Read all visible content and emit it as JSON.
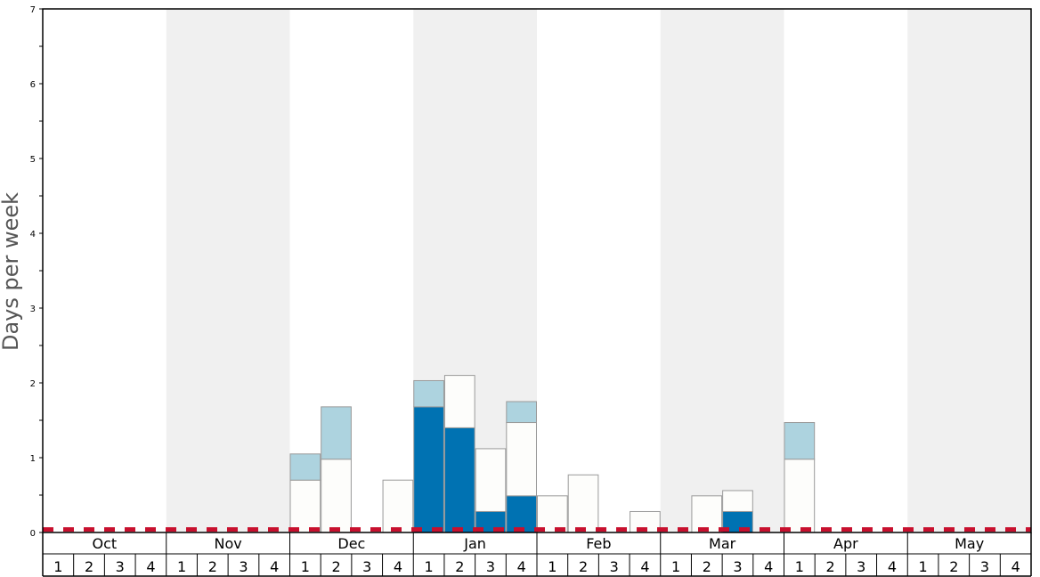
{
  "chart_data": {
    "type": "bar",
    "ylabel": "Days per week",
    "ylim": [
      0,
      7
    ],
    "yticks": [
      "0",
      "1",
      "2",
      "3",
      "4",
      "5",
      "6",
      "7"
    ],
    "months": [
      "Oct",
      "Nov",
      "Dec",
      "Jan",
      "Feb",
      "Mar",
      "Apr",
      "May"
    ],
    "week_labels": [
      "1",
      "2",
      "3",
      "4"
    ],
    "threshold": 0.04,
    "colors": {
      "dark": "#0072b2",
      "light": "#add3df",
      "white": "#fdfdfb",
      "band": "#f0f0f0",
      "threshold": "#c8102e",
      "bar_edge": "#9a9a9a"
    },
    "bars": [
      {
        "month": "Dec",
        "week": 1,
        "segments": [
          {
            "fill": "white",
            "value": 0.7
          },
          {
            "fill": "light",
            "value": 0.35
          }
        ]
      },
      {
        "month": "Dec",
        "week": 2,
        "segments": [
          {
            "fill": "white",
            "value": 0.98
          },
          {
            "fill": "light",
            "value": 0.7
          }
        ]
      },
      {
        "month": "Dec",
        "week": 4,
        "segments": [
          {
            "fill": "white",
            "value": 0.7
          }
        ]
      },
      {
        "month": "Jan",
        "week": 1,
        "segments": [
          {
            "fill": "dark",
            "value": 1.68
          },
          {
            "fill": "light",
            "value": 0.35
          }
        ]
      },
      {
        "month": "Jan",
        "week": 2,
        "segments": [
          {
            "fill": "dark",
            "value": 1.4
          },
          {
            "fill": "white",
            "value": 0.7
          }
        ]
      },
      {
        "month": "Jan",
        "week": 3,
        "segments": [
          {
            "fill": "dark",
            "value": 0.28
          },
          {
            "fill": "white",
            "value": 0.84
          }
        ]
      },
      {
        "month": "Jan",
        "week": 4,
        "segments": [
          {
            "fill": "dark",
            "value": 0.49
          },
          {
            "fill": "white",
            "value": 0.98
          },
          {
            "fill": "light",
            "value": 0.28
          }
        ]
      },
      {
        "month": "Feb",
        "week": 1,
        "segments": [
          {
            "fill": "white",
            "value": 0.49
          }
        ]
      },
      {
        "month": "Feb",
        "week": 2,
        "segments": [
          {
            "fill": "white",
            "value": 0.77
          }
        ]
      },
      {
        "month": "Feb",
        "week": 4,
        "segments": [
          {
            "fill": "white",
            "value": 0.28
          }
        ]
      },
      {
        "month": "Mar",
        "week": 2,
        "segments": [
          {
            "fill": "white",
            "value": 0.49
          }
        ]
      },
      {
        "month": "Mar",
        "week": 3,
        "segments": [
          {
            "fill": "dark",
            "value": 0.28
          },
          {
            "fill": "white",
            "value": 0.28
          }
        ]
      },
      {
        "month": "Apr",
        "week": 1,
        "segments": [
          {
            "fill": "white",
            "value": 0.98
          },
          {
            "fill": "light",
            "value": 0.49
          }
        ]
      }
    ]
  }
}
